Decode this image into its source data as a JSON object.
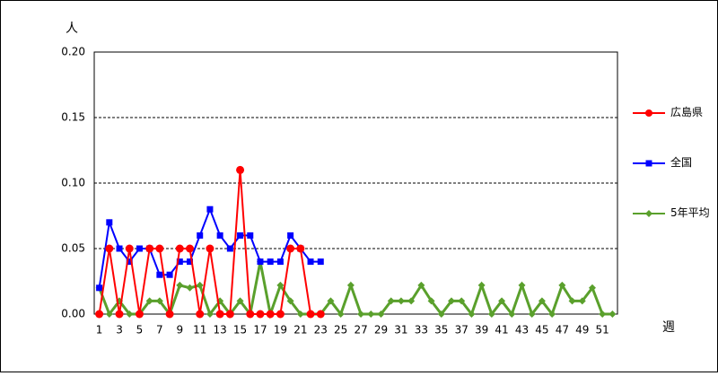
{
  "chart_data": {
    "type": "line",
    "y_label": "人",
    "x_label": "週",
    "categories": [
      1,
      null,
      3,
      null,
      5,
      null,
      7,
      null,
      9,
      null,
      11,
      null,
      13,
      null,
      15,
      null,
      17,
      null,
      19,
      null,
      21,
      null,
      23,
      null,
      25,
      null,
      27,
      null,
      29,
      null,
      31,
      null,
      33,
      null,
      35,
      null,
      37,
      null,
      39,
      null,
      41,
      null,
      43,
      null,
      45,
      null,
      47,
      null,
      49,
      null,
      51,
      null
    ],
    "ylim": [
      0,
      0.2
    ],
    "yticks": [
      {
        "value": 0,
        "label": "0.00"
      },
      {
        "value": 0.05,
        "label": "0.05"
      },
      {
        "value": 0.1,
        "label": "0.10"
      },
      {
        "value": 0.15,
        "label": "0.15"
      },
      {
        "value": 0.2,
        "label": "0.20"
      }
    ],
    "grid": true,
    "legend": "right",
    "series": [
      {
        "name": "広島県",
        "color": "#ff0000",
        "marker": "circle",
        "values": [
          0,
          0.05,
          0,
          0.05,
          0,
          0.05,
          0.05,
          0,
          0.05,
          0.05,
          0,
          0.05,
          0,
          0,
          0.11,
          0,
          0,
          0,
          0,
          0.05,
          0.05,
          0,
          0,
          null,
          null,
          null,
          null,
          null,
          null,
          null,
          null,
          null,
          null,
          null,
          null,
          null,
          null,
          null,
          null,
          null,
          null,
          null,
          null,
          null,
          null,
          null,
          null,
          null,
          null,
          null,
          null,
          null
        ]
      },
      {
        "name": "全国",
        "color": "#0000ff",
        "marker": "square",
        "values": [
          0.02,
          0.07,
          0.05,
          0.04,
          0.05,
          0.05,
          0.03,
          0.03,
          0.04,
          0.04,
          0.06,
          0.08,
          0.06,
          0.05,
          0.06,
          0.06,
          0.04,
          0.04,
          0.04,
          0.06,
          0.05,
          0.04,
          0.04,
          null,
          null,
          null,
          null,
          null,
          null,
          null,
          null,
          null,
          null,
          null,
          null,
          null,
          null,
          null,
          null,
          null,
          null,
          null,
          null,
          null,
          null,
          null,
          null,
          null,
          null,
          null,
          null,
          null
        ]
      },
      {
        "name": "5年平均",
        "color": "#5aa02c",
        "marker": "diamond",
        "values": [
          0.02,
          0,
          0.01,
          0,
          0,
          0.01,
          0.01,
          0,
          0.022,
          0.02,
          0.022,
          0,
          0.01,
          0,
          0.01,
          0,
          0.04,
          0,
          0.022,
          0.01,
          0,
          0,
          0,
          0.01,
          0,
          0.022,
          0,
          0,
          0,
          0.01,
          0.01,
          0.01,
          0.022,
          0.01,
          0,
          0.01,
          0.01,
          0,
          0.022,
          0,
          0.01,
          0,
          0.022,
          0,
          0.01,
          0,
          0.022,
          0.01,
          0.01,
          0.02,
          0,
          0
        ]
      }
    ]
  }
}
